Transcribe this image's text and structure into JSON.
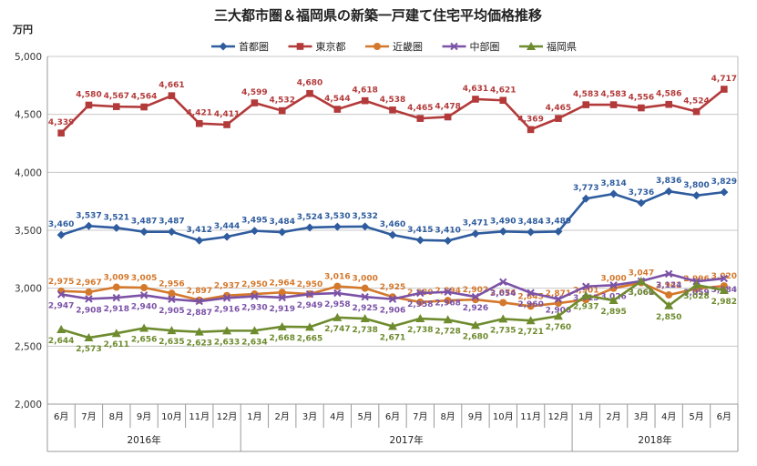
{
  "colors": {
    "s1": "#2E5C9E",
    "s2": "#B33A3A",
    "s3": "#D4782C",
    "s4": "#7B52A6",
    "s5": "#6E8B2E"
  },
  "chart_data": {
    "type": "line",
    "title": "三大都市圏＆福岡県の新築一戸建て住宅平均価格推移",
    "ylabel": "万円",
    "xlabel": "",
    "ylim": [
      2000,
      5000
    ],
    "yticks": [
      "2,000",
      "2,500",
      "3,000",
      "3,500",
      "4,000",
      "4,500",
      "5,000"
    ],
    "ytick_values": [
      2000,
      2500,
      3000,
      3500,
      4000,
      4500,
      5000
    ],
    "grid": true,
    "legend_position": "top",
    "categories": [
      "6月",
      "7月",
      "8月",
      "9月",
      "10月",
      "11月",
      "12月",
      "1月",
      "2月",
      "3月",
      "4月",
      "5月",
      "6月",
      "7月",
      "8月",
      "9月",
      "10月",
      "11月",
      "12月",
      "1月",
      "2月",
      "3月",
      "4月",
      "5月",
      "6月"
    ],
    "year_groups": [
      {
        "label": "2016年",
        "start": 0,
        "end": 6
      },
      {
        "label": "2017年",
        "start": 7,
        "end": 18
      },
      {
        "label": "2018年",
        "start": 19,
        "end": 24
      }
    ],
    "series": [
      {
        "name": "首都圏",
        "color_key": "s1",
        "marker": "diamond",
        "values": [
          3460,
          3537,
          3521,
          3487,
          3487,
          3412,
          3444,
          3495,
          3484,
          3524,
          3530,
          3532,
          3460,
          3415,
          3410,
          3471,
          3490,
          3484,
          3489,
          3773,
          3814,
          3736,
          3836,
          3800,
          3829
        ],
        "labels": [
          "3,460",
          "3,537",
          "3,521",
          "3,487",
          "3,487",
          "3,412",
          "3,444",
          "3,495",
          "3,484",
          "3,524",
          "3,530",
          "3,532",
          "3,460",
          "3,415",
          "3,410",
          "3,471",
          "3,490",
          "3,484",
          "3,489",
          "3,773",
          "3,814",
          "3,736",
          "3,836",
          "3,800",
          "3,829"
        ]
      },
      {
        "name": "東京都",
        "color_key": "s2",
        "marker": "square",
        "values": [
          4339,
          4580,
          4567,
          4564,
          4661,
          4421,
          4411,
          4599,
          4532,
          4680,
          4544,
          4618,
          4538,
          4465,
          4478,
          4631,
          4621,
          4369,
          4465,
          4583,
          4583,
          4556,
          4586,
          4524,
          4717
        ],
        "labels": [
          "4,339",
          "4,580",
          "4,567",
          "4,564",
          "4,661",
          "4,421",
          "4,411",
          "4,599",
          "4,532",
          "4,680",
          "4,544",
          "4,618",
          "4,538",
          "4,465",
          "4,478",
          "4,631",
          "4,621",
          "4,369",
          "4,465",
          "4,583",
          "4,583",
          "4,556",
          "4,586",
          "4,524",
          "4,717"
        ]
      },
      {
        "name": "近畿圏",
        "color_key": "s3",
        "marker": "circle",
        "values": [
          2975,
          2967,
          3009,
          3005,
          2956,
          2897,
          2937,
          2950,
          2964,
          2950,
          3016,
          3000,
          2925,
          2880,
          2894,
          2902,
          2876,
          2845,
          2871,
          2901,
          3000,
          3047,
          2942,
          2996,
          3020
        ],
        "labels": [
          "2,975",
          "2,967",
          "3,009",
          "3,005",
          "2,956",
          "2,897",
          "2,937",
          "2,950",
          "2,964",
          "2,950",
          "3,016",
          "3,000",
          "2,925",
          "2,880",
          "2,894",
          "2,902",
          "2,876",
          "2,845",
          "2,871",
          "2,901",
          "3,000",
          "3,047",
          "2,942",
          "2,996",
          "3,020"
        ]
      },
      {
        "name": "中部圏",
        "color_key": "s4",
        "marker": "x",
        "values": [
          2947,
          2908,
          2918,
          2940,
          2905,
          2887,
          2916,
          2930,
          2919,
          2949,
          2958,
          2925,
          2906,
          2958,
          2968,
          2926,
          3054,
          2960,
          2906,
          3015,
          3026,
          3061,
          3124,
          3059,
          3084
        ],
        "labels": [
          "2,947",
          "2,908",
          "2,918",
          "2,940",
          "2,905",
          "2,887",
          "2,916",
          "2,930",
          "2,919",
          "2,949",
          "2,958",
          "2,925",
          "2,906",
          "2,958",
          "2,968",
          "2,926",
          "3,054",
          "2,960",
          "2,906",
          "3,015",
          "3,026",
          "3,061",
          "3,124",
          "3,059",
          "3,084"
        ]
      },
      {
        "name": "福岡県",
        "color_key": "s5",
        "marker": "triangle",
        "values": [
          2644,
          2573,
          2611,
          2656,
          2635,
          2623,
          2633,
          2634,
          2668,
          2665,
          2747,
          2738,
          2671,
          2738,
          2728,
          2680,
          2735,
          2721,
          2760,
          2937,
          2895,
          3060,
          2850,
          3028,
          2982
        ],
        "labels": [
          "2,644",
          "2,573",
          "2,611",
          "2,656",
          "2,635",
          "2,623",
          "2,633",
          "2,634",
          "2,668",
          "2,665",
          "2,747",
          "2,738",
          "2,671",
          "2,738",
          "2,728",
          "2,680",
          "2,735",
          "2,721",
          "2,760",
          "2,937",
          "2,895",
          "3,060",
          "2,850",
          "3,028",
          "2,982"
        ]
      }
    ]
  }
}
